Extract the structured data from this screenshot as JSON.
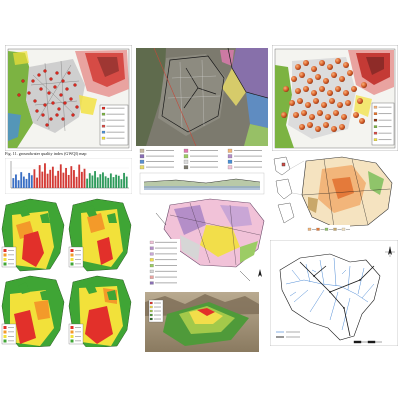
{
  "caption": "Fig. 11. groundwater quality index (GWQI) map",
  "colors": {
    "vegetation_green": "#7cb342",
    "urban_gray": "#cfcfcf",
    "terrain_red": "#d64b45",
    "sample_red": "#d9281f",
    "sample_orange": "#e8742a",
    "water_blue": "#4a8fd6",
    "zone_green": "#3fa535",
    "zone_yellow": "#f2e13a",
    "zone_orange": "#f39a2a",
    "zone_red": "#e2302a",
    "geo_pink": "#f1c2d8",
    "geo_purple": "#b48ec8",
    "geo_yellow": "#f2de4a",
    "river_blue": "#3b7fd1",
    "road_black": "#1a1a1a"
  },
  "gwqi_bars": {
    "values": [
      38,
      52,
      30,
      61,
      44,
      35,
      58,
      49,
      72,
      40,
      88,
      63,
      95,
      55,
      70,
      82,
      47,
      66,
      91,
      59,
      77,
      50,
      84,
      69,
      43,
      90,
      62,
      74,
      36,
      57,
      48,
      65,
      41,
      53,
      60,
      45,
      39,
      56,
      42,
      51,
      47,
      34,
      58,
      44
    ],
    "colors": [
      "#3a6fc4",
      "#3a6fc4",
      "#3a6fc4",
      "#3a6fc4",
      "#3a6fc4",
      "#3a6fc4",
      "#3a6fc4",
      "#3a6fc4",
      "#d33a35",
      "#d33a35",
      "#d33a35",
      "#d33a35",
      "#d33a35",
      "#d33a35",
      "#d33a35",
      "#d33a35",
      "#d33a35",
      "#d33a35",
      "#d33a35",
      "#d33a35",
      "#d33a35",
      "#d33a35",
      "#d33a35",
      "#d33a35",
      "#d33a35",
      "#d33a35",
      "#d33a35",
      "#d33a35",
      "#2e9a5b",
      "#2e9a5b",
      "#2e9a5b",
      "#2e9a5b",
      "#2e9a5b",
      "#2e9a5b",
      "#2e9a5b",
      "#2e9a5b",
      "#2e9a5b",
      "#2e9a5b",
      "#2e9a5b",
      "#2e9a5b",
      "#2e9a5b",
      "#2e9a5b",
      "#2e9a5b",
      "#2e9a5b"
    ],
    "max": 100
  }
}
